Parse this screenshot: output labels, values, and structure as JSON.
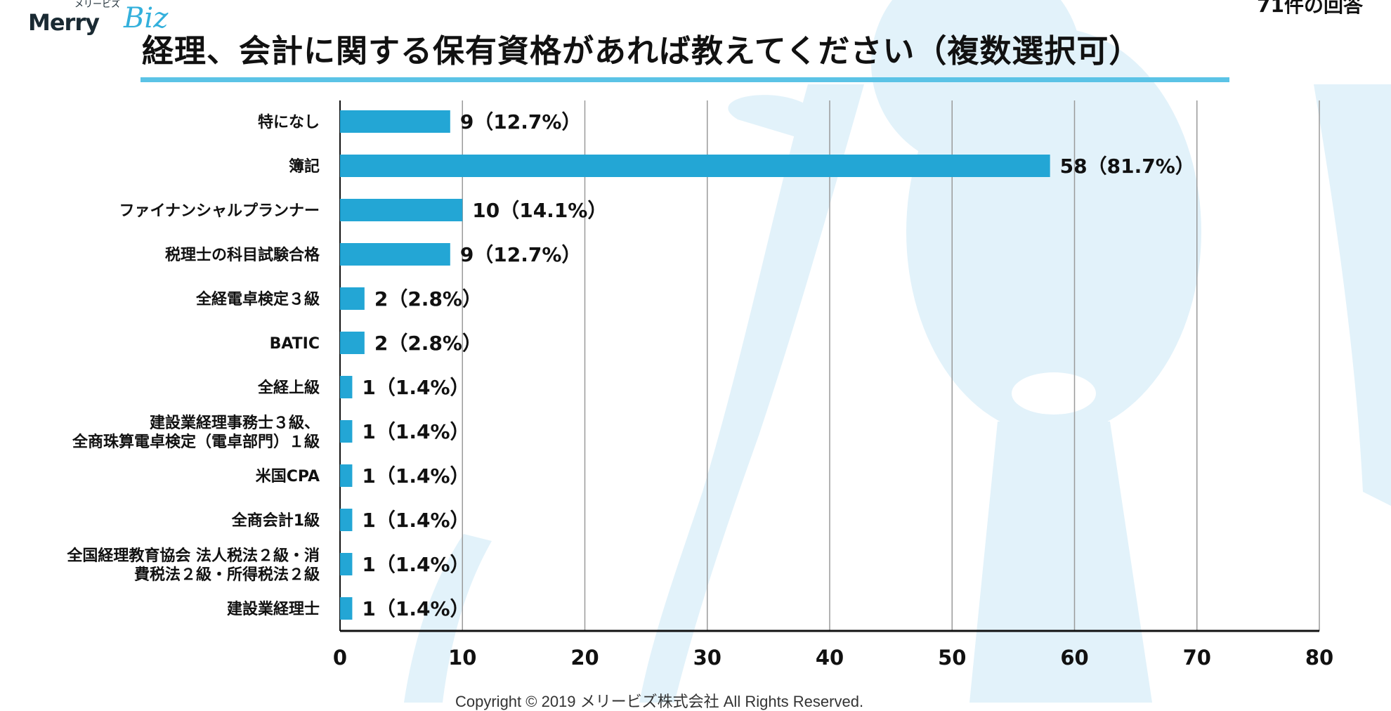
{
  "header": {
    "logo_kana": "メリービズ",
    "logo_text": "Merry",
    "logo_biz": "Biz",
    "response_count": "71件の回答",
    "title": "経理、会計に関する保有資格があれば教えてください（複数選択可）"
  },
  "footer": {
    "copyright": "Copyright © 2019 メリービズ株式会社 All Rights Reserved."
  },
  "colors": {
    "bar": "#23a6d5",
    "accent_line": "#5bc3e6",
    "background_art": "#e2f2fa"
  },
  "chart_data": {
    "type": "bar",
    "orientation": "horizontal",
    "categories": [
      "特になし",
      "簿記",
      "ファイナンシャルプランナー",
      "税理士の科目試験合格",
      "全経電卓検定３級",
      "BATIC",
      "全経上級",
      "建設業経理事務士３級、\n全商珠算電卓検定（電卓部門）１級",
      "米国CPA",
      "全商会計1級",
      "全国経理教育協会 法人税法２級・消\n費税法２級・所得税法２級",
      "建設業経理士"
    ],
    "values": [
      9,
      58,
      10,
      9,
      2,
      2,
      1,
      1,
      1,
      1,
      1,
      1
    ],
    "data_labels": [
      "9（12.7%）",
      "58（81.7%）",
      "10（14.1%）",
      "9（12.7%）",
      "2（2.8%）",
      "2（2.8%）",
      "1（1.4%）",
      "1（1.4%）",
      "1（1.4%）",
      "1（1.4%）",
      "1（1.4%）",
      "1（1.4%）"
    ],
    "xlim": [
      0,
      80
    ],
    "xticks": [
      "0",
      "10",
      "20",
      "30",
      "40",
      "50",
      "60",
      "70",
      "80"
    ],
    "grid": "vertical",
    "title": "経理、会計に関する保有資格があれば教えてください（複数選択可）",
    "xlabel": "",
    "ylabel": ""
  }
}
